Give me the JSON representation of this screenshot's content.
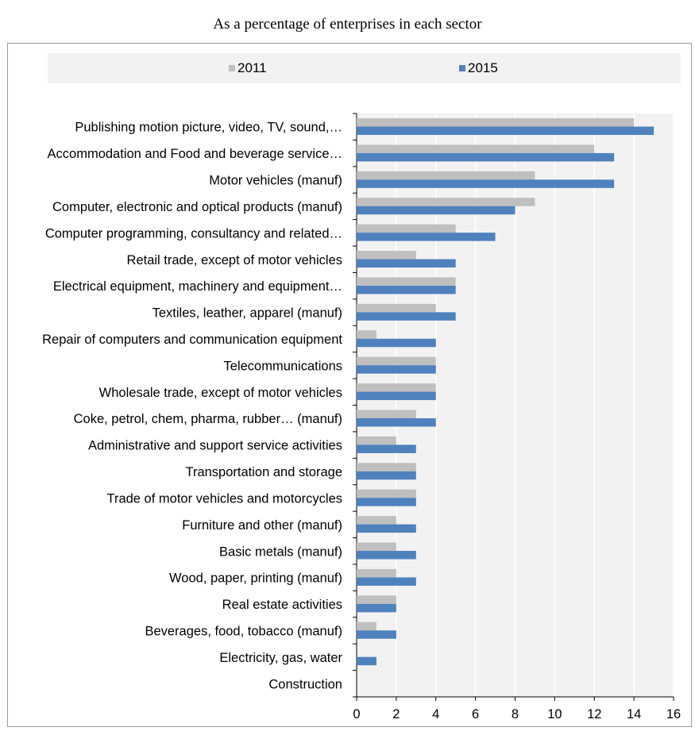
{
  "subtitle": "As a percentage of enterprises in each sector",
  "chart_data": {
    "type": "bar",
    "orientation": "horizontal",
    "categories": [
      "Publishing motion picture, video, TV, sound,…",
      "Accommodation and Food and beverage service…",
      "Motor vehicles (manuf)",
      "Computer, electronic and optical products (manuf)",
      "Computer programming, consultancy and related…",
      "Retail trade, except of motor vehicles",
      "Electrical equipment, machinery and equipment…",
      "Textiles, leather, apparel (manuf)",
      "Repair of computers and communication equipment",
      "Telecommunications",
      "Wholesale trade, except of motor vehicles",
      "Coke, petrol, chem, pharma, rubber… (manuf)",
      "Administrative and support service activities",
      "Transportation and storage",
      "Trade of motor vehicles and motorcycles",
      "Furniture and other (manuf)",
      "Basic metals (manuf)",
      "Wood, paper, printing (manuf)",
      "Real estate activities",
      "Beverages, food, tobacco (manuf)",
      "Electricity, gas, water",
      "Construction"
    ],
    "series": [
      {
        "name": "2011",
        "color": "#bfbfbf",
        "values": [
          14,
          12,
          9,
          9,
          5,
          3,
          5,
          4,
          1,
          4,
          4,
          3,
          2,
          3,
          3,
          2,
          2,
          2,
          2,
          1,
          0,
          0
        ]
      },
      {
        "name": "2015",
        "color": "#4f81bd",
        "values": [
          15,
          13,
          13,
          8,
          7,
          5,
          5,
          5,
          4,
          4,
          4,
          4,
          3,
          3,
          3,
          3,
          3,
          3,
          2,
          2,
          1,
          0
        ]
      }
    ],
    "xlim": [
      0,
      16
    ],
    "xticks": [
      0,
      2,
      4,
      6,
      8,
      10,
      12,
      14,
      16
    ],
    "grid": "vertical",
    "legend_position": "top"
  }
}
